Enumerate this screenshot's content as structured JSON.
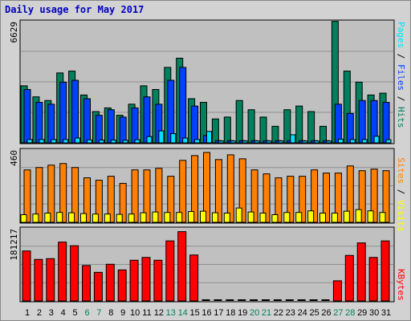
{
  "chart_data": {
    "type": "bar",
    "title": "Daily usage for May 2017",
    "categories": [
      "1",
      "2",
      "3",
      "4",
      "5",
      "6",
      "7",
      "8",
      "9",
      "10",
      "11",
      "12",
      "13",
      "14",
      "15",
      "16",
      "17",
      "18",
      "19",
      "20",
      "21",
      "22",
      "23",
      "24",
      "25",
      "26",
      "27",
      "28",
      "29",
      "30",
      "31"
    ],
    "weekend_days": [
      "6",
      "7",
      "13",
      "14",
      "20",
      "21",
      "27",
      "28"
    ],
    "colors": {
      "hits": "#00805c",
      "files": "#0040ff",
      "pages": "#00e0ff",
      "visits": "#ffff00",
      "sites": "#ff8000",
      "kbytes": "#ff0000",
      "weekday_label": "#000000",
      "weekend_label": "#00805c"
    },
    "panels": [
      {
        "id": "hits_files_pages",
        "ymax_label": "6629",
        "ylim": [
          0,
          6629
        ],
        "label_parts": [
          {
            "text": "Pages",
            "color": "#00e0ff"
          },
          {
            "text": " / ",
            "color": "#000000"
          },
          {
            "text": "Files",
            "color": "#0040ff"
          },
          {
            "text": " / ",
            "color": "#000000"
          },
          {
            "text": "Hits",
            "color": "#00805c"
          }
        ],
        "series": [
          {
            "key": "hits",
            "values": [
              3100,
              2500,
              2300,
              3800,
              3900,
              2600,
              1700,
              1900,
              1500,
              2100,
              3100,
              2900,
              4100,
              4600,
              2400,
              2200,
              1300,
              1400,
              2300,
              1800,
              1400,
              900,
              1800,
              2000,
              1700,
              900,
              6600,
              3900,
              3300,
              2600,
              2700
            ]
          },
          {
            "key": "files",
            "values": [
              2900,
              2200,
              2100,
              3300,
              3400,
              2400,
              1500,
              1800,
              1400,
              1900,
              2500,
              2100,
              3400,
              4100,
              2000,
              400,
              120,
              120,
              120,
              120,
              120,
              120,
              120,
              120,
              120,
              120,
              2100,
              1600,
              2300,
              2300,
              2200
            ]
          },
          {
            "key": "pages",
            "values": [
              180,
              180,
              180,
              180,
              260,
              160,
              150,
              150,
              140,
              170,
              340,
              650,
              500,
              260,
              180,
              620,
              100,
              100,
              100,
              100,
              100,
              100,
              440,
              100,
              100,
              100,
              200,
              180,
              180,
              360,
              170
            ]
          }
        ]
      },
      {
        "id": "visits_sites",
        "ymax_label": "460",
        "ylim": [
          0,
          460
        ],
        "label_parts": [
          {
            "text": "Sites",
            "color": "#ff8000"
          },
          {
            "text": " / ",
            "color": "#000000"
          },
          {
            "text": "Visits",
            "color": "#ffff00"
          }
        ],
        "series": [
          {
            "key": "sites",
            "values": [
              330,
              345,
              360,
              370,
              345,
              280,
              265,
              290,
              245,
              330,
              330,
              340,
              290,
              390,
              420,
              440,
              395,
              425,
              400,
              330,
              305,
              280,
              290,
              290,
              330,
              310,
              310,
              355,
              325,
              335,
              325
            ]
          },
          {
            "key": "visits",
            "values": [
              48,
              52,
              58,
              62,
              60,
              55,
              52,
              52,
              50,
              52,
              60,
              65,
              62,
              62,
              68,
              70,
              60,
              58,
              90,
              65,
              58,
              48,
              62,
              62,
              72,
              58,
              58,
              70,
              80,
              72,
              62
            ]
          }
        ]
      },
      {
        "id": "kbytes",
        "ymax_label": "181217",
        "ylim": [
          0,
          181217
        ],
        "label_parts": [
          {
            "text": "KBytes",
            "color": "#ff0000"
          }
        ],
        "series": [
          {
            "key": "kbytes",
            "values": [
              124000,
              103000,
              105000,
              146000,
              137000,
              88000,
              71000,
              91000,
              77000,
              101000,
              108000,
              101000,
              149000,
              172000,
              114000,
              0,
              0,
              0,
              0,
              0,
              0,
              0,
              0,
              0,
              0,
              0,
              50000,
              113000,
              144000,
              108000,
              149000
            ]
          }
        ]
      }
    ]
  }
}
